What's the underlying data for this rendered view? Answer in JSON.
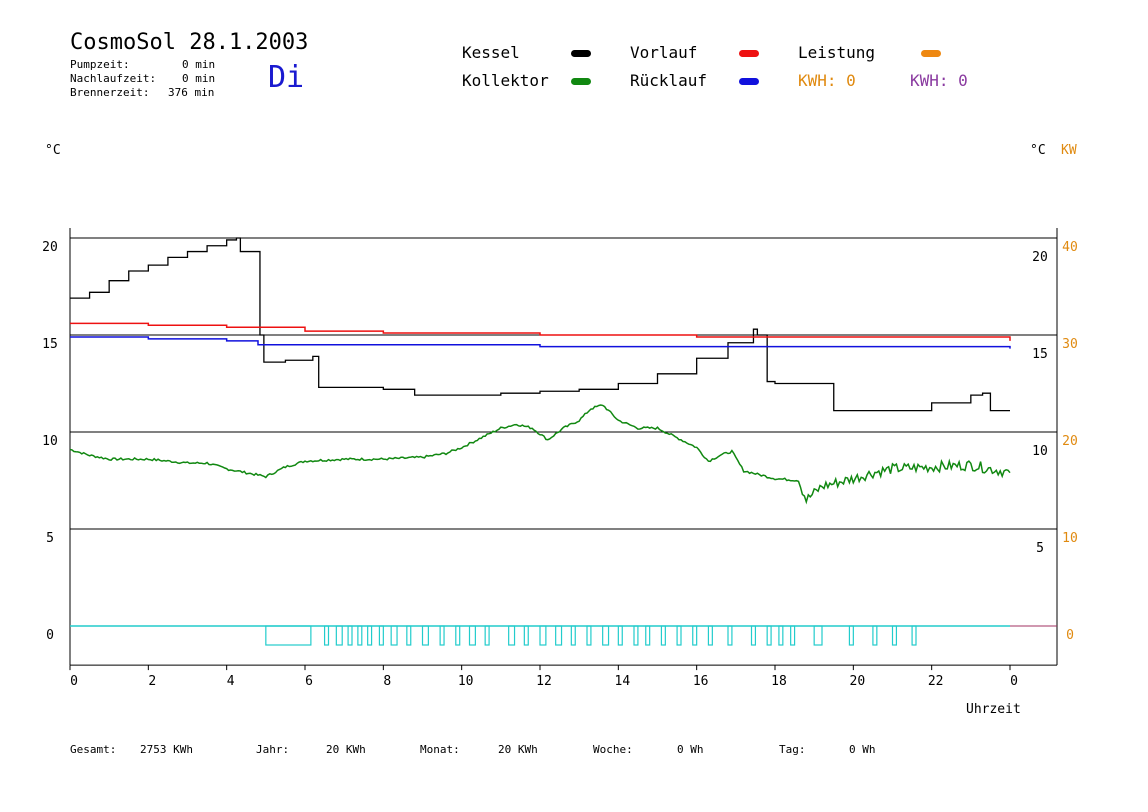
{
  "header": {
    "title": "CosmoSol 28.1.2003",
    "day": "Di",
    "stats": [
      {
        "label": "Pumpzeit:",
        "value": "0 min"
      },
      {
        "label": "Nachlaufzeit:",
        "value": "0 min"
      },
      {
        "label": "Brennerzeit:",
        "value": "376 min"
      }
    ]
  },
  "legend": {
    "kessel": "Kessel",
    "kollektor": "Kollektor",
    "vorlauf": "Vorlauf",
    "ruecklauf": "Rücklauf",
    "leistung": "Leistung",
    "kwh1": "KWH: 0",
    "kwh2": "KWH: 0",
    "colors": {
      "kessel": "#000000",
      "kollektor": "#118811",
      "vorlauf": "#ee1111",
      "ruecklauf": "#1111dd",
      "leistung": "#ee8811",
      "kwh1": "#e08a10",
      "kwh2": "#8a3aa0",
      "pump": "#22cccc"
    }
  },
  "axes": {
    "left_unit": "°C",
    "right_unit": "°C",
    "right_unit2": "KW",
    "xlabel": "Uhrzeit"
  },
  "totals": {
    "gesamt_label": "Gesamt:",
    "gesamt_value": "2753 KWh",
    "jahr_label": "Jahr:",
    "jahr_value": "20 KWh",
    "monat_label": "Monat:",
    "monat_value": "20 KWh",
    "woche_label": "Woche:",
    "woche_value": "0 Wh",
    "tag_label": "Tag:",
    "tag_value": "0 Wh"
  },
  "chart_data": {
    "type": "line",
    "x_ticks": [
      "0",
      "2",
      "4",
      "6",
      "8",
      "10",
      "12",
      "14",
      "16",
      "18",
      "20",
      "22",
      "0"
    ],
    "x_range": [
      0,
      24
    ],
    "y_left_ticks": [
      "20",
      "15",
      "10",
      "5",
      "0"
    ],
    "y_right_ticks": [
      "20",
      "15",
      "10",
      "5"
    ],
    "y_right2_ticks": [
      "40",
      "30",
      "20",
      "10",
      "0"
    ],
    "ylim": [
      -1.5,
      21
    ],
    "grid_y": [
      20,
      15,
      10,
      5,
      0
    ],
    "series": [
      {
        "name": "Kessel",
        "color": "#000000",
        "step": true,
        "points": [
          [
            0,
            16.9
          ],
          [
            0.5,
            17.2
          ],
          [
            1,
            17.8
          ],
          [
            1.5,
            18.3
          ],
          [
            2,
            18.6
          ],
          [
            2.5,
            19.0
          ],
          [
            3,
            19.3
          ],
          [
            3.5,
            19.6
          ],
          [
            4,
            19.9
          ],
          [
            4.25,
            20.0
          ],
          [
            4.35,
            19.3
          ],
          [
            4.6,
            19.3
          ],
          [
            4.85,
            15.0
          ],
          [
            4.95,
            13.6
          ],
          [
            5.5,
            13.7
          ],
          [
            6.2,
            13.9
          ],
          [
            6.35,
            12.3
          ],
          [
            7,
            12.3
          ],
          [
            8,
            12.2
          ],
          [
            8.8,
            11.9
          ],
          [
            10,
            11.9
          ],
          [
            11,
            12.0
          ],
          [
            12,
            12.1
          ],
          [
            13,
            12.2
          ],
          [
            14,
            12.5
          ],
          [
            15,
            13.0
          ],
          [
            16,
            13.8
          ],
          [
            16.8,
            14.6
          ],
          [
            17.45,
            15.3
          ],
          [
            17.55,
            15.0
          ],
          [
            17.8,
            12.6
          ],
          [
            18,
            12.5
          ],
          [
            19.2,
            12.5
          ],
          [
            19.5,
            11.1
          ],
          [
            20,
            11.1
          ],
          [
            21,
            11.1
          ],
          [
            22,
            11.5
          ],
          [
            23,
            11.9
          ],
          [
            23.3,
            12.0
          ],
          [
            23.5,
            11.1
          ],
          [
            24,
            11.1
          ]
        ]
      },
      {
        "name": "Vorlauf",
        "color": "#ee1111",
        "step": true,
        "points": [
          [
            0,
            15.6
          ],
          [
            2,
            15.5
          ],
          [
            4,
            15.4
          ],
          [
            6,
            15.2
          ],
          [
            8,
            15.1
          ],
          [
            10,
            15.1
          ],
          [
            12,
            15.0
          ],
          [
            14,
            15.0
          ],
          [
            16,
            14.9
          ],
          [
            18,
            14.9
          ],
          [
            20,
            14.9
          ],
          [
            22,
            14.9
          ],
          [
            24,
            14.7
          ]
        ]
      },
      {
        "name": "Rücklauf",
        "color": "#1111dd",
        "step": true,
        "points": [
          [
            0,
            14.9
          ],
          [
            2,
            14.8
          ],
          [
            4,
            14.7
          ],
          [
            4.8,
            14.5
          ],
          [
            6,
            14.5
          ],
          [
            8,
            14.5
          ],
          [
            10,
            14.5
          ],
          [
            12,
            14.4
          ],
          [
            14,
            14.4
          ],
          [
            16,
            14.4
          ],
          [
            18,
            14.4
          ],
          [
            20,
            14.4
          ],
          [
            22,
            14.4
          ],
          [
            24,
            14.3
          ]
        ]
      },
      {
        "name": "Kollektor",
        "color": "#118811",
        "noisy": true,
        "points": [
          [
            0,
            9.1
          ],
          [
            0.5,
            8.8
          ],
          [
            1,
            8.6
          ],
          [
            2,
            8.6
          ],
          [
            3,
            8.4
          ],
          [
            3.5,
            8.4
          ],
          [
            4,
            8.1
          ],
          [
            5,
            7.7
          ],
          [
            5.5,
            8.2
          ],
          [
            6,
            8.5
          ],
          [
            7,
            8.6
          ],
          [
            8,
            8.6
          ],
          [
            9,
            8.7
          ],
          [
            9.6,
            8.9
          ],
          [
            10,
            9.2
          ],
          [
            10.5,
            9.7
          ],
          [
            11,
            10.2
          ],
          [
            11.4,
            10.4
          ],
          [
            11.8,
            10.2
          ],
          [
            12.2,
            9.6
          ],
          [
            12.6,
            10.2
          ],
          [
            13,
            10.6
          ],
          [
            13.3,
            11.2
          ],
          [
            13.6,
            11.4
          ],
          [
            14,
            10.6
          ],
          [
            14.5,
            10.2
          ],
          [
            15,
            10.2
          ],
          [
            15.5,
            9.7
          ],
          [
            16,
            9.2
          ],
          [
            16.3,
            8.5
          ],
          [
            16.6,
            8.8
          ],
          [
            16.9,
            9.0
          ],
          [
            17.2,
            8.0
          ],
          [
            17.6,
            7.8
          ],
          [
            18,
            7.6
          ],
          [
            18.6,
            7.5
          ],
          [
            18.8,
            6.5
          ],
          [
            19.2,
            7.2
          ],
          [
            20,
            7.6
          ],
          [
            20.5,
            7.9
          ],
          [
            21,
            8.1
          ],
          [
            22,
            8.2
          ],
          [
            23,
            8.3
          ],
          [
            24,
            7.9
          ]
        ]
      },
      {
        "name": "Pumpe",
        "color": "#22cccc",
        "pump_blocks": [
          [
            5.0,
            6.15
          ],
          [
            6.5,
            6.6
          ],
          [
            6.8,
            6.95
          ],
          [
            7.1,
            7.2
          ],
          [
            7.35,
            7.45
          ],
          [
            7.6,
            7.7
          ],
          [
            7.9,
            8.0
          ],
          [
            8.2,
            8.35
          ],
          [
            8.6,
            8.7
          ],
          [
            9.0,
            9.15
          ],
          [
            9.45,
            9.55
          ],
          [
            9.85,
            9.95
          ],
          [
            10.2,
            10.35
          ],
          [
            10.6,
            10.7
          ],
          [
            11.2,
            11.35
          ],
          [
            11.6,
            11.7
          ],
          [
            12.0,
            12.15
          ],
          [
            12.4,
            12.55
          ],
          [
            12.8,
            12.9
          ],
          [
            13.2,
            13.3
          ],
          [
            13.6,
            13.75
          ],
          [
            14.0,
            14.1
          ],
          [
            14.4,
            14.5
          ],
          [
            14.7,
            14.8
          ],
          [
            15.1,
            15.2
          ],
          [
            15.5,
            15.6
          ],
          [
            15.9,
            16.0
          ],
          [
            16.3,
            16.4
          ],
          [
            16.8,
            16.9
          ],
          [
            17.4,
            17.5
          ],
          [
            17.8,
            17.9
          ],
          [
            18.1,
            18.2
          ],
          [
            18.4,
            18.5
          ],
          [
            19.0,
            19.2
          ],
          [
            19.9,
            20.0
          ],
          [
            20.5,
            20.6
          ],
          [
            21.0,
            21.1
          ],
          [
            21.5,
            21.6
          ]
        ]
      }
    ]
  }
}
